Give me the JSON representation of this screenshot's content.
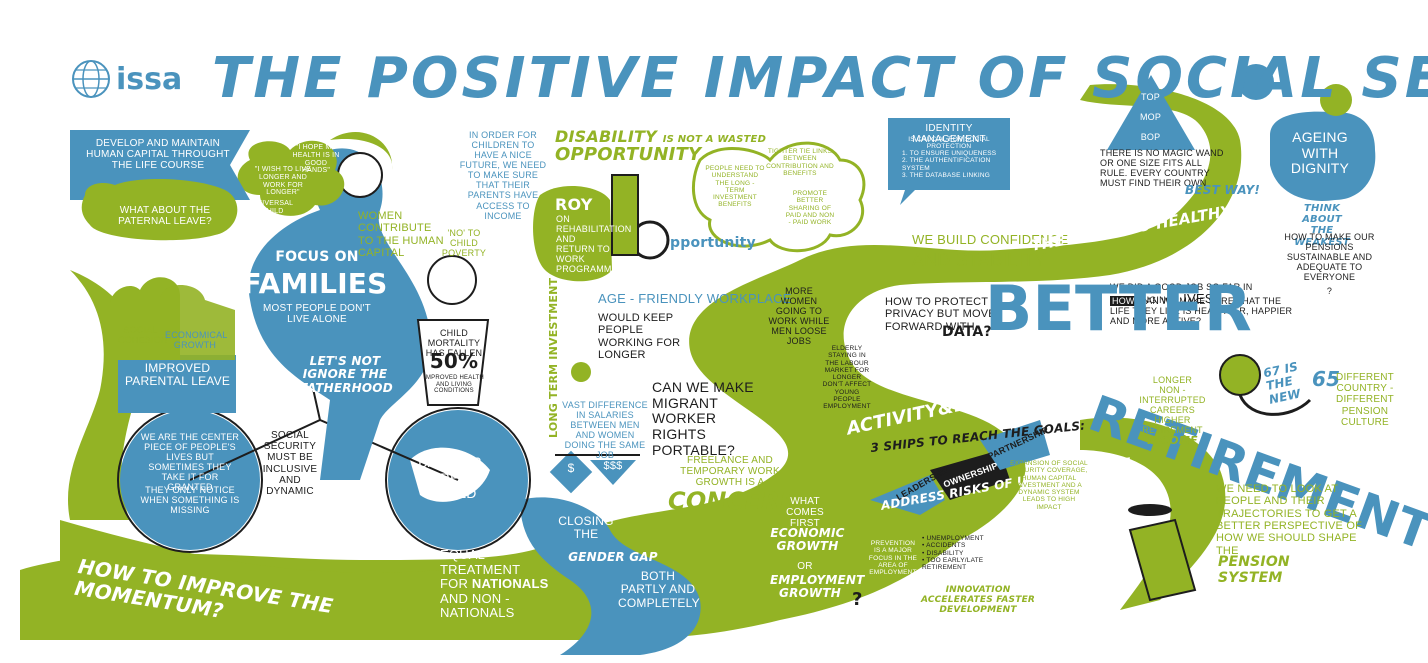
{
  "colors": {
    "blue": "#4a93bd",
    "green": "#93b325",
    "dark": "#1d1d1d"
  },
  "logo": {
    "text": "issa",
    "icon": "globe-icon"
  },
  "title": "THE POSITIVE IMPACT OF SOCIAL SECURITY",
  "families": {
    "flag": "DEVELOP AND MAINTAIN HUMAN CAPITAL THROUGHT THE LIFE COURSE",
    "paternal": "WHAT ABOUT THE PATERNAL LEAVE?",
    "bubble_work": "\"I WISH TO LIVE LONGER AND WORK FOR LONGER\"",
    "bubble_health": "\"I HOPE MY HEALTH IS IN GOOD HANDS\"",
    "universal": "UNIVERSAL CHILD BENEFITS",
    "women": "WOMEN CONTRIBUTE TO THE HUMAN CAPITAL",
    "children": "IN ORDER FOR CHILDREN TO HAVE A NICE FUTURE, WE NEED TO MAKE SURE THAT THEIR PARENTS HAVE ACCESS TO INCOME",
    "no_poverty": "'NO' TO CHILD POVERTY",
    "focus": "FOCUS ON",
    "families_word": "FAMILIES",
    "most_people": "MOST PEOPLE DON'T LIVE ALONE",
    "fatherhood": "LET'S NOT IGNORE THE FATHERHOOD",
    "social_cohesion": "SOCIAL COHESION",
    "economical_growth": "ECONOMICAL GROWTH",
    "improved_leave": "IMPROVED PARENTAL LEAVE",
    "mortality_line1": "CHILD MORTALITY HAS FALLEN",
    "mortality_pct": "50%",
    "mortality_line2": "IMPROVED HEALTH AND LIVING CONDITIONS",
    "wheel_text": "WE ARE THE CENTER PIECE OF PEOPLE'S LIVES BUT SOMETIMES THEY TAKE IT FOR GRANTED",
    "wheel_text2": "THEY ONLY NOTICE WHEN SOMETHING IS MISSING",
    "inclusive": "SOCIAL SECURITY MUST BE INCLUSIVE AND DYNAMIC",
    "barrier": "BARRIER FREE WORLD",
    "momentum": "HOW TO IMPROVE THE MOMENTUM?"
  },
  "disability": {
    "title1": "DISABILITY",
    "title2": "IS NOT A WASTED",
    "title3": "OPPORTUNITY",
    "roy_name": "ROY",
    "roy_text": "ON REHABILITATION AND RETURN TO WORK PROGRAMMES",
    "opportunity": "pportunity",
    "long_term": "LONG TERM INVESTMENT",
    "age_friendly": "AGE - FRIENDLY WORKPLACE",
    "keep_working": "WOULD KEEP PEOPLE WORKING FOR LONGER",
    "salary": "VAST DIFFERENCE IN SALARIES BETWEEN MEN AND WOMEN DOING THE SAME JOB",
    "coin1": "$",
    "coin2": "$$$",
    "migrant": "CAN WE MAKE MIGRANT WORKER RIGHTS PORTABLE?",
    "freelance": "FREELANCE AND TEMPORARY WORK GROWTH IS A",
    "concern": "CONCERN",
    "gender1": "CLOSING THE",
    "gender2": "GENDER GAP",
    "gender3": "BOTH PARTLY AND COMPLETELY",
    "equal": "EQUAL TREATMENT FOR",
    "nationals": "NATIONALS",
    "and": "AND",
    "non_nationals": "NON - NATIONALS"
  },
  "middle": {
    "people_need": "PEOPLE NEED TO UNDERSTAND THE LONG - TERM INVESTMENT BENEFITS",
    "tighter": "TIGHTER TIE LINKS BETWEEN CONTRIBUTION AND BENEFITS",
    "promote": "PROMOTE BETTER SHARING OF PAID AND NON - PAID WORK",
    "more_women": "MORE WOMEN GOING TO WORK WHILE MEN LOOSE JOBS",
    "elderly": "ELDERLY STAYING IN THE LABOUR MARKET FOR LONGER DON'T AFFECT YOUNG PEOPLE EMPLOYMENT",
    "identity_title": "IDENTITY MANAGEMENT",
    "identity_sub": "IS CRUCIAL FOR SOCIAL PROTECTION",
    "identity_items": [
      "1. TO ENSURE UNIQUENESS",
      "2. THE AUTHENTIFICATION SYSTEM",
      "3. THE DATABASE LINKING"
    ],
    "confidence1": "WE BUILD CONFIDENCE",
    "confidence2": "AND STABILITY",
    "privacy": "HOW TO PROTECT PRIVACY BUT MOVE FORWARD WITH",
    "data": "DATA?",
    "activity": "ACTIVITY&EMPLOYMENT",
    "ships": "3 SHIPS TO REACH THE GOALS:",
    "leadership": "LEADERSHIP",
    "ownership": "OWNERSHIP",
    "partnership": "PARTNERSHIP",
    "address": "ADDRESS RISKS OF UNEMPLOYMENT",
    "prevention": "PREVENTION IS A MAJOR FOCUS IN THE AREA OF EMPLOYMENT",
    "risks": [
      "• UNEMPLOYMENT",
      "• ACCIDENTS",
      "• DISABILITY",
      "• TOO EARLY/LATE RETIREMENT"
    ],
    "expansion": "EXPANSION OF SOCIAL SECURITY COVERAGE, HUMAN CAPITAL INVESTMENT AND A DYNAMIC SYSTEM LEADS TO HIGH IMPACT",
    "good_news": "THE GOOD NEWS: THERE IS A SCOPE TO INCREASE BENEFIT LEVELS IN MANY COUNTRIES",
    "what_first": "WHAT COMES FIRST",
    "economic_growth": "ECONOMIC GROWTH",
    "or": "OR",
    "employment_growth": "EMPLOYMENT GROWTH",
    "question": "?",
    "innovation": "INNOVATION ACCELERATES FASTER DEVELOPMENT"
  },
  "ageing": {
    "pyramid": [
      "TOP",
      "MOP",
      "BOP"
    ],
    "magic": "THERE IS NO MAGIC WAND OR ONE SIZE FITS ALL RULE. EVERY COUNTRY MUST FIND THEIR OWN",
    "best_way": "BEST WAY!",
    "right": "THE RIGHT TO HEALTHY LIFE",
    "ageing_title": "AGEING WITH DIGNITY",
    "weakest": "THINK ABOUT THE WEAKEST",
    "pensions": "HOW TO MAKE OUR PENSIONS SUSTAINABLE AND ADEQUATE TO EVERYONE",
    "pensions_q": "?",
    "prolong1": "WE DID A GOOD JOB SO FAR IN PROLONGING",
    "lives": "LIVES",
    "how": "HOW",
    "prolong2": "CAN WE MAKE SURE THAT THE LIFE THEY LIVE IS HEALTHIER, HAPPIER AND MORE ACTIVE?",
    "better": "BETTER",
    "retirement": "RETIREMENT",
    "new65a": "67 IS THE NEW",
    "new65b": "65",
    "longer": "LONGER",
    "careers": "NON - INTERRUPTED CAREERS",
    "higher": "HIGHER RETIREMENT",
    "income": "INCOME",
    "different": "DIFFERENT COUNTRY - DIFFERENT PENSION CULTURE",
    "trajectory": "WE NEED TO LOOK AT PEOPLE AND THEIR TRAJECTORIES TO GET A BETTER PERSPECTIVE OF HOW WE SHOULD SHAPE THE",
    "pension_system": "PENSION SYSTEM"
  }
}
